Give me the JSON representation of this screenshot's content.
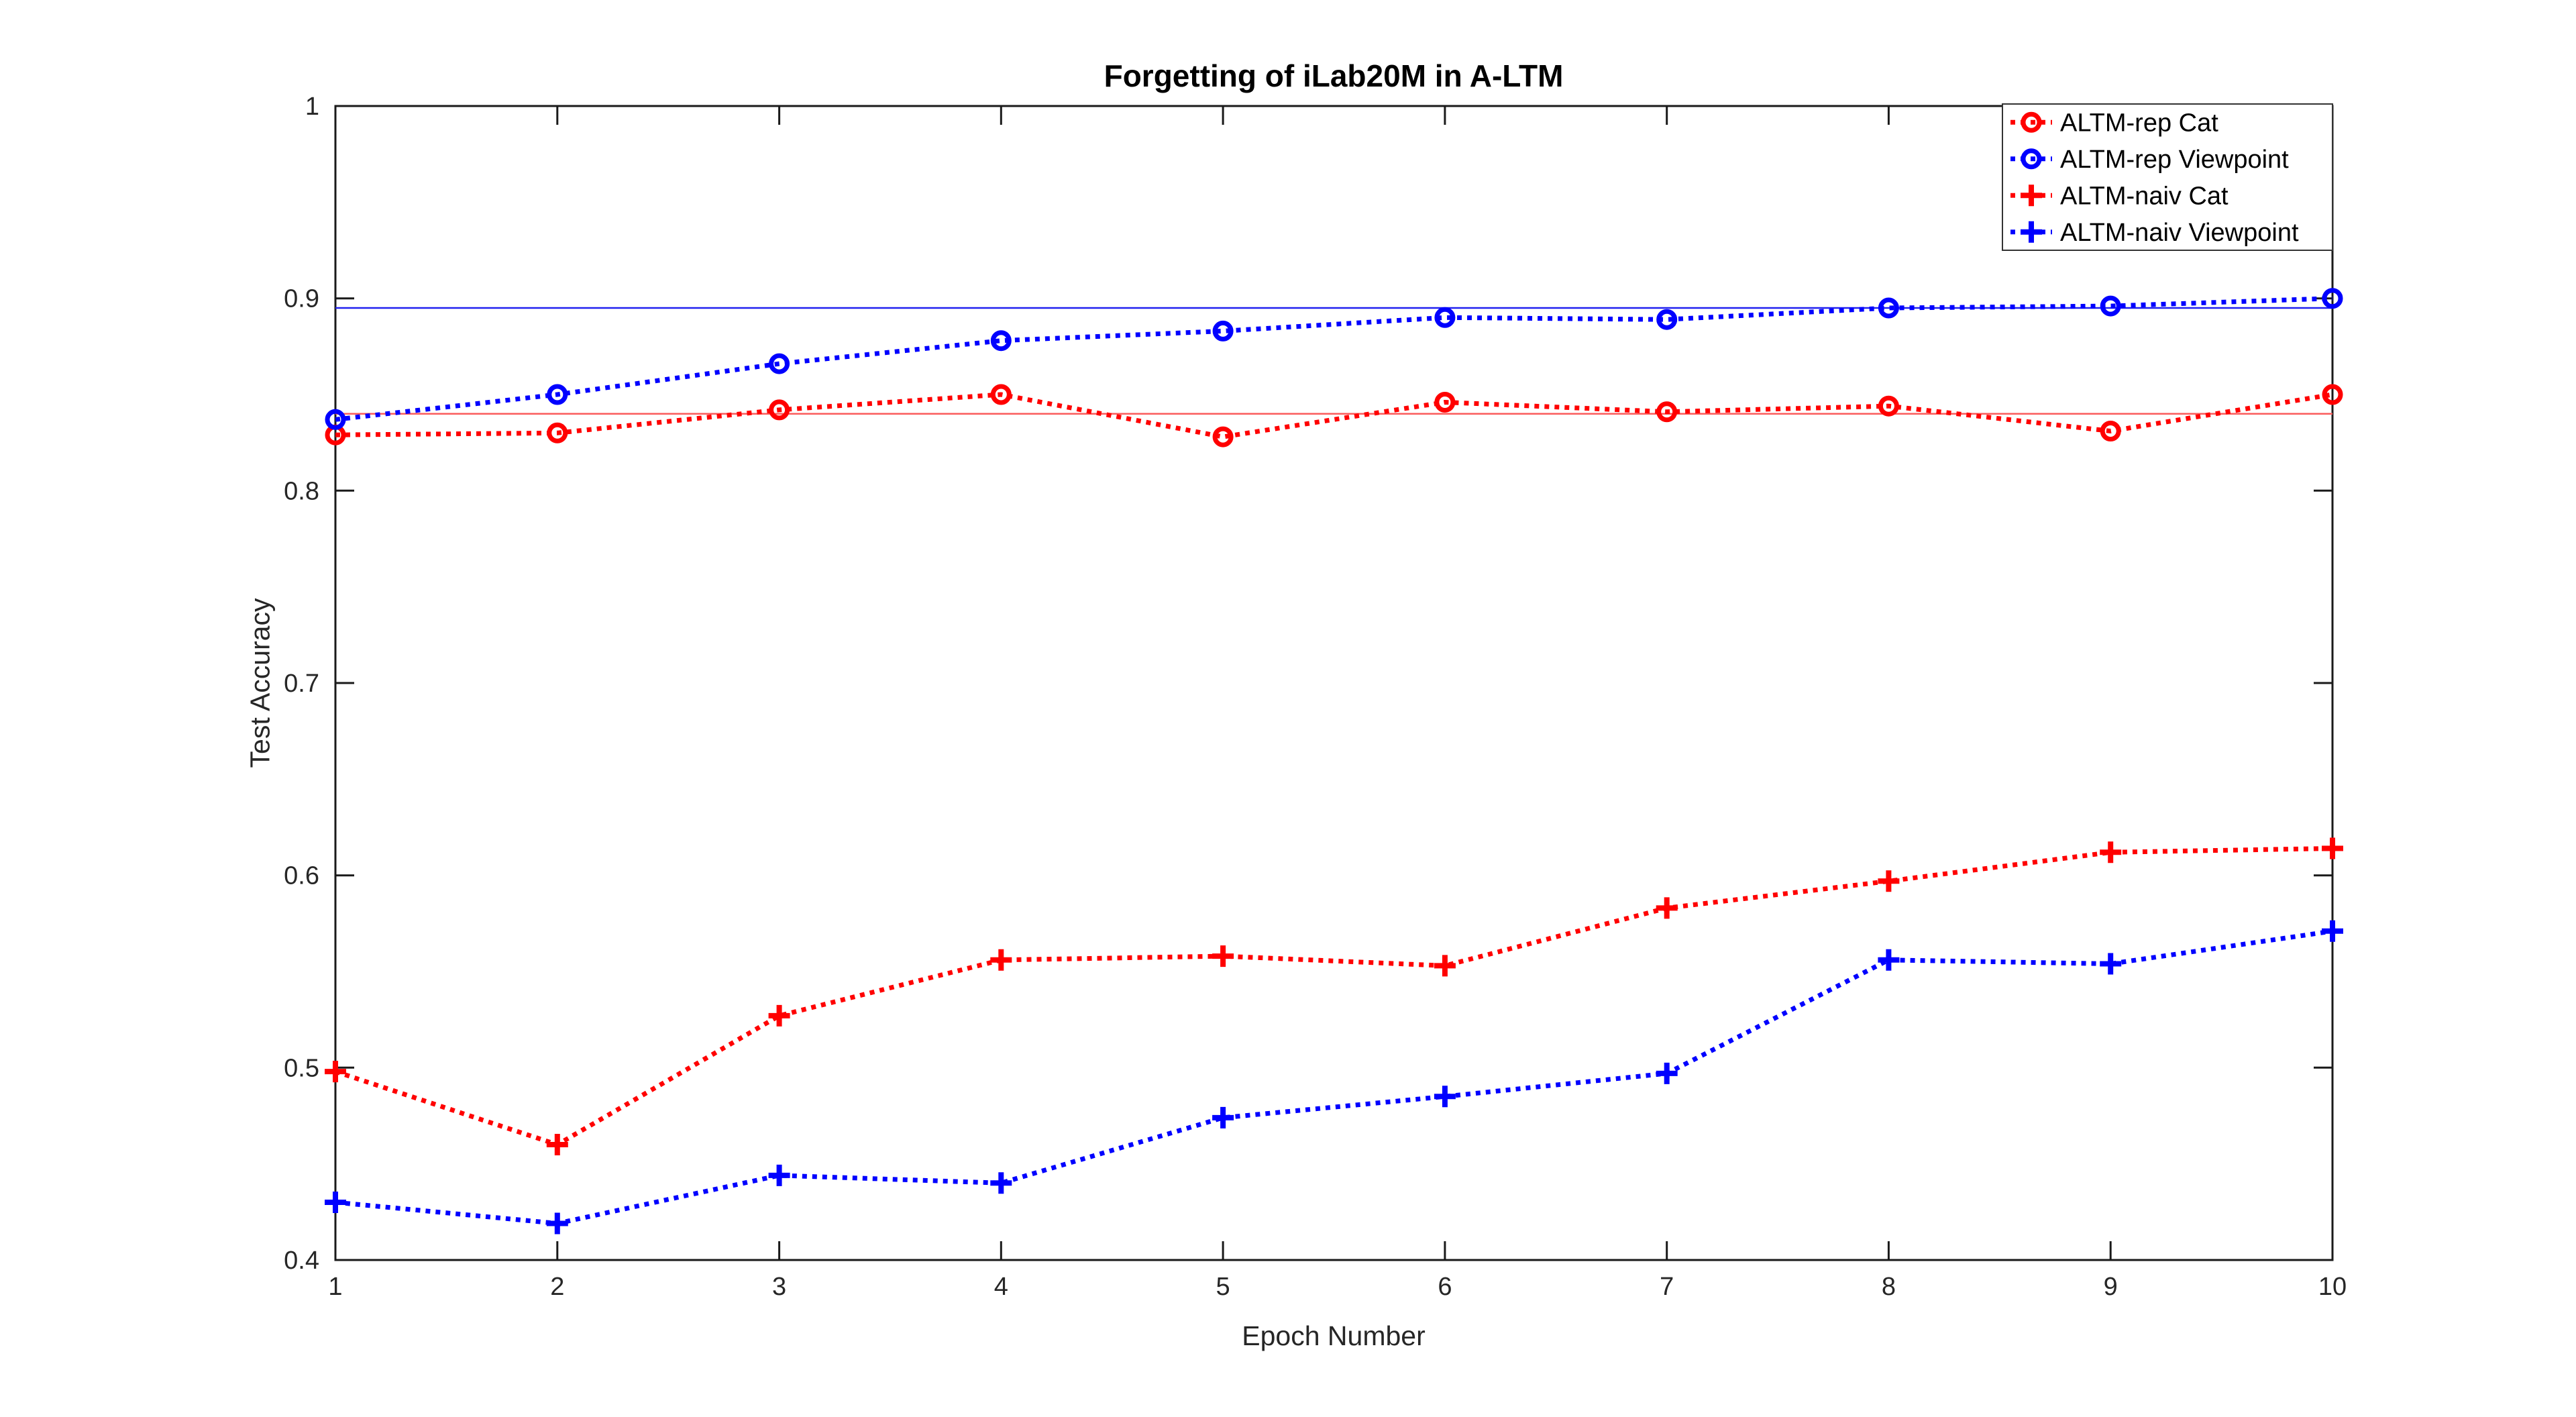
{
  "chart_data": {
    "type": "line",
    "title": "Forgetting of iLab20M in A-LTM",
    "xlabel": "Epoch Number",
    "ylabel": "Test Accuracy",
    "x": [
      1,
      2,
      3,
      4,
      5,
      6,
      7,
      8,
      9,
      10
    ],
    "xlim": [
      1,
      10
    ],
    "ylim": [
      0.4,
      1.0
    ],
    "xticks": {
      "values": [
        1,
        2,
        3,
        4,
        5,
        6,
        7,
        8,
        9,
        10
      ],
      "labels": [
        "1",
        "2",
        "3",
        "4",
        "5",
        "6",
        "7",
        "8",
        "9",
        "10"
      ]
    },
    "yticks": {
      "values": [
        0.4,
        0.5,
        0.6,
        0.7,
        0.8,
        0.9,
        1.0
      ],
      "labels": [
        "0.4",
        "0.5",
        "0.6",
        "0.7",
        "0.8",
        "0.9",
        "1"
      ]
    },
    "grid": false,
    "legend_position": "top-right",
    "series": [
      {
        "name": "ALTM-rep Cat",
        "color": "#ff0000",
        "marker": "circle",
        "line_style": "dotted",
        "values": [
          0.829,
          0.83,
          0.842,
          0.85,
          0.828,
          0.846,
          0.841,
          0.844,
          0.831,
          0.85
        ]
      },
      {
        "name": "ALTM-rep Viewpoint",
        "color": "#0000ff",
        "marker": "circle",
        "line_style": "dotted",
        "values": [
          0.837,
          0.85,
          0.866,
          0.878,
          0.883,
          0.89,
          0.889,
          0.895,
          0.896,
          0.9
        ]
      },
      {
        "name": "ALTM-naiv Cat",
        "color": "#ff0000",
        "marker": "plus",
        "line_style": "dotted",
        "values": [
          0.498,
          0.46,
          0.527,
          0.556,
          0.558,
          0.553,
          0.583,
          0.597,
          0.612,
          0.614
        ]
      },
      {
        "name": "ALTM-naiv Viewpoint",
        "color": "#0000ff",
        "marker": "plus",
        "line_style": "dotted",
        "values": [
          0.43,
          0.419,
          0.444,
          0.44,
          0.474,
          0.485,
          0.497,
          0.556,
          0.554,
          0.571
        ]
      }
    ],
    "reference_lines": [
      {
        "value": 0.895,
        "color": "#2121ef"
      },
      {
        "value": 0.84,
        "color": "#fb5c5c"
      }
    ]
  },
  "colors": {
    "axis": "#1a1a1a",
    "tick_text": "#262626",
    "legend_border": "#333333",
    "background": "#ffffff"
  }
}
